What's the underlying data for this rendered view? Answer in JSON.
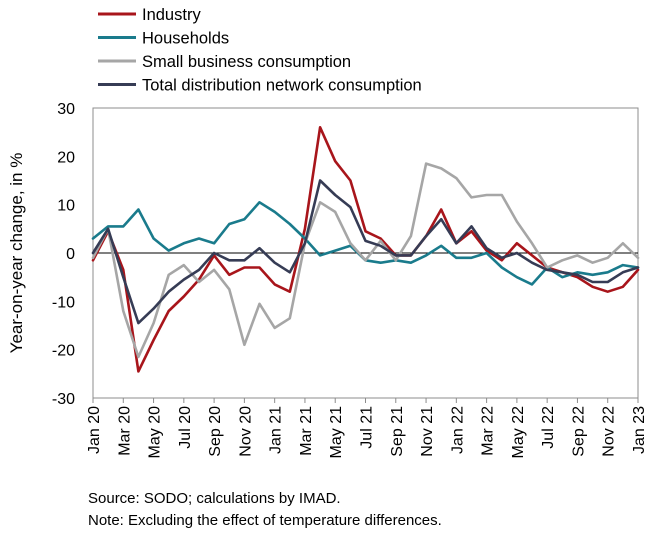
{
  "chart_data": {
    "type": "line",
    "x": [
      "Jan 20",
      "Feb 20",
      "Mar 20",
      "Apr 20",
      "May 20",
      "Jun 20",
      "Jul 20",
      "Aug 20",
      "Sep 20",
      "Oct 20",
      "Nov 20",
      "Dec 20",
      "Jan 21",
      "Feb 21",
      "Mar 21",
      "Apr 21",
      "May 21",
      "Jun 21",
      "Jul 21",
      "Aug 21",
      "Sep 21",
      "Oct 21",
      "Nov 21",
      "Dec 21",
      "Jan 22",
      "Feb 22",
      "Mar 22",
      "Apr 22",
      "May 22",
      "Jun 22",
      "Jul 22",
      "Aug 22",
      "Sep 22",
      "Oct 22",
      "Nov 22",
      "Dec 22",
      "Jan 23"
    ],
    "x_tick_labels": [
      "Jan 20",
      "Mar 20",
      "May 20",
      "Jul 20",
      "Sep 20",
      "Nov 20",
      "Jan 21",
      "Mar 21",
      "May 21",
      "Jul 21",
      "Sep 21",
      "Nov 21",
      "Jan 22",
      "Mar 22",
      "May 22",
      "Jul 22",
      "Sep 22",
      "Nov 22",
      "Jan 23"
    ],
    "ylabel": "Year-on-year change, in %",
    "ylim": [
      -30,
      30
    ],
    "y_ticks": [
      -30,
      -20,
      -10,
      0,
      10,
      20,
      30
    ],
    "legend_position": "top-left",
    "series": [
      {
        "name": "Industry",
        "color": "#a8151b",
        "values": [
          -1.5,
          4.5,
          -3.5,
          -24.5,
          -18,
          -12,
          -9,
          -5.5,
          -0.5,
          -4.5,
          -3,
          -3,
          -6.5,
          -8,
          5,
          26,
          19,
          15,
          4.5,
          3,
          -0.5,
          -0.5,
          3.5,
          9,
          2,
          4.5,
          0.5,
          -1.5,
          2,
          -0.5,
          -3,
          -4,
          -5,
          -7,
          -8,
          -7,
          -3.5
        ]
      },
      {
        "name": "Households",
        "color": "#1a7b8c",
        "values": [
          3,
          5.5,
          5.5,
          9,
          3,
          0.5,
          2,
          3,
          2,
          6,
          7,
          10.5,
          8.5,
          6,
          3,
          -0.5,
          0.5,
          1.5,
          -1.5,
          -2,
          -1.5,
          -2,
          -0.5,
          1.5,
          -1,
          -1,
          0,
          -3,
          -5,
          -6.5,
          -3,
          -5,
          -4,
          -4.5,
          -4,
          -2.5,
          -3
        ]
      },
      {
        "name": "Small business consumption",
        "color": "#a6a6a6",
        "values": [
          -1,
          5,
          -12,
          -21.5,
          -14.5,
          -4.5,
          -2.5,
          -6,
          -3.5,
          -7.5,
          -19,
          -10.5,
          -15.5,
          -13.5,
          2,
          10.5,
          8.5,
          2,
          -1.5,
          2.5,
          -1.5,
          3.5,
          18.5,
          17.5,
          15.5,
          11.5,
          12,
          12,
          6.5,
          2,
          -3,
          -1.5,
          -0.5,
          -2,
          -1,
          2,
          -1
        ]
      },
      {
        "name": "Total distribution network consumption",
        "color": "#363c55",
        "values": [
          0,
          5,
          -5,
          -14.5,
          -11.5,
          -8,
          -5.5,
          -3.5,
          0,
          -1.5,
          -1.5,
          1,
          -2,
          -4,
          2,
          15,
          12,
          9.5,
          2.5,
          1.5,
          -0.5,
          -0.5,
          3.5,
          7,
          2,
          5.5,
          1,
          -1,
          0,
          -2,
          -3.5,
          -4,
          -4.5,
          -6,
          -6,
          -4,
          -3
        ]
      }
    ]
  },
  "notes": {
    "source": "Source: SODO; calculations by IMAD.",
    "note": "Note: Excluding the effect of temperature differences."
  }
}
